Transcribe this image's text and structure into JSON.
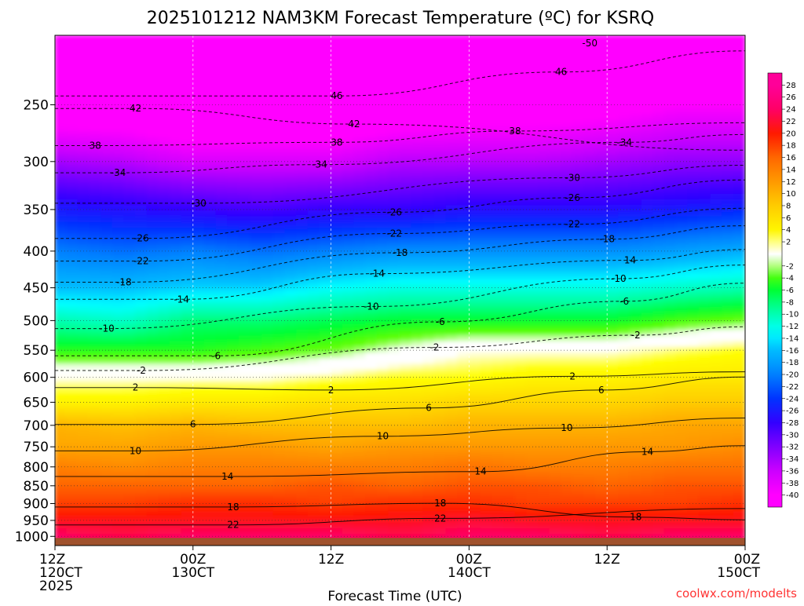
{
  "chart_data": {
    "type": "heatmap",
    "title": "2025101212 NAM3KM Forecast Temperature (ºC) for KSRQ",
    "xlabel": "Forecast Time (UTC)",
    "ylabel": "",
    "credit": "coolwx.com/modelts",
    "x_ticks": [
      {
        "hours": 0,
        "lines": [
          "12Z",
          "120CT",
          "2025"
        ]
      },
      {
        "hours": 12,
        "lines": [
          "00Z",
          "130CT"
        ]
      },
      {
        "hours": 24,
        "lines": [
          "12Z"
        ]
      },
      {
        "hours": 36,
        "lines": [
          "00Z",
          "140CT"
        ]
      },
      {
        "hours": 48,
        "lines": [
          "12Z"
        ]
      },
      {
        "hours": 60,
        "lines": [
          "00Z",
          "150CT"
        ]
      }
    ],
    "xlim": [
      0,
      60
    ],
    "y_ticks": [
      250,
      300,
      350,
      400,
      450,
      500,
      550,
      600,
      650,
      700,
      750,
      800,
      850,
      900,
      950,
      1000
    ],
    "ylim_hPa": [
      200,
      1030
    ],
    "surface_hPa": 1005,
    "colorbar_ticks": [
      28,
      26,
      24,
      22,
      20,
      18,
      16,
      14,
      12,
      10,
      8,
      6,
      4,
      2,
      -2,
      -4,
      -6,
      -8,
      -10,
      -12,
      -14,
      -16,
      -18,
      -20,
      -22,
      -24,
      -26,
      -28,
      -30,
      -32,
      -34,
      -36,
      -38,
      -40
    ],
    "color_stops": [
      {
        "t": -40,
        "color": "#ff00ff"
      },
      {
        "t": -36,
        "color": "#cc00ff"
      },
      {
        "t": -32,
        "color": "#8000ff"
      },
      {
        "t": -28,
        "color": "#3300ff"
      },
      {
        "t": -24,
        "color": "#0033ff"
      },
      {
        "t": -20,
        "color": "#0080ff"
      },
      {
        "t": -16,
        "color": "#00bbff"
      },
      {
        "t": -13,
        "color": "#00ffff"
      },
      {
        "t": -9,
        "color": "#00ff99"
      },
      {
        "t": -6,
        "color": "#00ff33"
      },
      {
        "t": -3,
        "color": "#66ff00"
      },
      {
        "t": -1,
        "color": "#ffffff"
      },
      {
        "t": 1,
        "color": "#ffffff"
      },
      {
        "t": 3,
        "color": "#ffff00"
      },
      {
        "t": 8,
        "color": "#ffcc00"
      },
      {
        "t": 12,
        "color": "#ff9900"
      },
      {
        "t": 16,
        "color": "#ff6600"
      },
      {
        "t": 20,
        "color": "#ff1a00"
      },
      {
        "t": 24,
        "color": "#ff0066"
      },
      {
        "t": 28,
        "color": "#ff0099"
      }
    ],
    "profile_levels_hPa": [
      200,
      250,
      300,
      350,
      400,
      450,
      500,
      550,
      600,
      650,
      700,
      750,
      800,
      850,
      900,
      950,
      1000
    ],
    "profile_times_h": [
      0,
      6,
      12,
      18,
      24,
      30,
      36,
      42,
      48,
      54,
      60
    ],
    "temperature_grid_C": [
      [
        -54,
        -53,
        -52,
        -51,
        -50,
        -50,
        -50,
        -50,
        -51,
        -51,
        -51
      ],
      [
        -44,
        -44,
        -46,
        -46,
        -46,
        -44,
        -43,
        -43,
        -42,
        -40,
        -40
      ],
      [
        -34,
        -35,
        -37,
        -37,
        -37,
        -35,
        -35,
        -35,
        -34,
        -33,
        -33
      ],
      [
        -26,
        -27,
        -28,
        -29,
        -28,
        -28,
        -27,
        -27,
        -27,
        -26,
        -25
      ],
      [
        -20,
        -21,
        -20,
        -21,
        -20,
        -19,
        -19,
        -19,
        -19,
        -18,
        -17
      ],
      [
        -16,
        -16,
        -15,
        -15,
        -13,
        -12,
        -12,
        -12,
        -12,
        -11,
        -10
      ],
      [
        -10,
        -11,
        -8,
        -8,
        -7,
        -6,
        -6,
        -6,
        -6,
        -4,
        -3
      ],
      [
        -5,
        -5,
        -5,
        -4,
        -3,
        -1,
        1,
        1,
        1,
        2,
        3
      ],
      [
        1,
        1,
        1,
        1,
        2,
        3,
        3,
        4,
        4,
        5,
        5
      ],
      [
        4,
        4,
        5,
        5,
        6,
        6,
        7,
        7,
        7,
        8,
        8
      ],
      [
        10,
        9,
        10,
        9,
        9,
        9,
        10,
        10,
        10,
        11,
        11
      ],
      [
        11,
        11,
        12,
        12,
        11,
        12,
        12,
        12,
        12,
        12,
        13
      ],
      [
        14,
        13,
        14,
        14,
        14,
        14,
        15,
        14,
        14,
        15,
        15
      ],
      [
        16,
        16,
        16,
        16,
        17,
        16,
        17,
        17,
        16,
        17,
        17
      ],
      [
        18,
        18,
        19,
        19,
        18,
        19,
        19,
        18,
        18,
        18,
        19
      ],
      [
        21,
        21,
        21,
        21,
        21,
        21,
        22,
        21,
        21,
        21,
        21
      ],
      [
        24,
        23,
        24,
        24,
        24,
        23,
        24,
        24,
        23,
        24,
        24
      ]
    ],
    "contour_labels": [
      {
        "value": "-50",
        "hours": 46.5,
        "hPa": 205
      },
      {
        "value": "46",
        "hours": 44,
        "hPa": 225
      },
      {
        "value": "46",
        "hours": 24.5,
        "hPa": 243
      },
      {
        "value": "42",
        "hours": 7,
        "hPa": 253
      },
      {
        "value": "42",
        "hours": 26,
        "hPa": 266
      },
      {
        "value": "38",
        "hours": 3.5,
        "hPa": 285
      },
      {
        "value": "38",
        "hours": 24.5,
        "hPa": 282
      },
      {
        "value": "38",
        "hours": 40,
        "hPa": 272
      },
      {
        "value": "-34",
        "hours": 5.5,
        "hPa": 311
      },
      {
        "value": "-34",
        "hours": 23,
        "hPa": 303
      },
      {
        "value": "-34",
        "hours": 49.5,
        "hPa": 282
      },
      {
        "value": "-30",
        "hours": 12.5,
        "hPa": 343
      },
      {
        "value": "-30",
        "hours": 45,
        "hPa": 316
      },
      {
        "value": "-26",
        "hours": 7.5,
        "hPa": 384
      },
      {
        "value": "-26",
        "hours": 29.5,
        "hPa": 353
      },
      {
        "value": "-26",
        "hours": 45,
        "hPa": 337
      },
      {
        "value": "-22",
        "hours": 7.5,
        "hPa": 413
      },
      {
        "value": "-22",
        "hours": 29.5,
        "hPa": 378
      },
      {
        "value": "-22",
        "hours": 45,
        "hPa": 367
      },
      {
        "value": "-18",
        "hours": 6,
        "hPa": 442
      },
      {
        "value": "-18",
        "hours": 30,
        "hPa": 402
      },
      {
        "value": "-18",
        "hours": 48,
        "hPa": 385
      },
      {
        "value": "-14",
        "hours": 11,
        "hPa": 467
      },
      {
        "value": "-14",
        "hours": 28,
        "hPa": 430
      },
      {
        "value": "14",
        "hours": 50,
        "hPa": 412
      },
      {
        "value": "-10",
        "hours": 4.5,
        "hPa": 513
      },
      {
        "value": "-10",
        "hours": 27.5,
        "hPa": 478
      },
      {
        "value": "-10",
        "hours": 49,
        "hPa": 437
      },
      {
        "value": "-6",
        "hours": 14,
        "hPa": 560
      },
      {
        "value": "-6",
        "hours": 33.5,
        "hPa": 502
      },
      {
        "value": "-6",
        "hours": 49.5,
        "hPa": 470
      },
      {
        "value": "-2",
        "hours": 7.5,
        "hPa": 587
      },
      {
        "value": "-2",
        "hours": 33,
        "hPa": 545
      },
      {
        "value": "-2",
        "hours": 50.5,
        "hPa": 524
      },
      {
        "value": "2",
        "hours": 7,
        "hPa": 620
      },
      {
        "value": "2",
        "hours": 24,
        "hPa": 625
      },
      {
        "value": "2",
        "hours": 45,
        "hPa": 598
      },
      {
        "value": "6",
        "hours": 12,
        "hPa": 698
      },
      {
        "value": "6",
        "hours": 32.5,
        "hPa": 662
      },
      {
        "value": "6",
        "hours": 47.5,
        "hPa": 625
      },
      {
        "value": "10",
        "hours": 7,
        "hPa": 760
      },
      {
        "value": "10",
        "hours": 28.5,
        "hPa": 725
      },
      {
        "value": "10",
        "hours": 44.5,
        "hPa": 706
      },
      {
        "value": "14",
        "hours": 15,
        "hPa": 825
      },
      {
        "value": "14",
        "hours": 37,
        "hPa": 812
      },
      {
        "value": "14",
        "hours": 51.5,
        "hPa": 762
      },
      {
        "value": "18",
        "hours": 15.5,
        "hPa": 910
      },
      {
        "value": "18",
        "hours": 33.5,
        "hPa": 899
      },
      {
        "value": "18",
        "hours": 50.5,
        "hPa": 940
      },
      {
        "value": "22",
        "hours": 15.5,
        "hPa": 964
      },
      {
        "value": "22",
        "hours": 33.5,
        "hPa": 944
      }
    ]
  }
}
